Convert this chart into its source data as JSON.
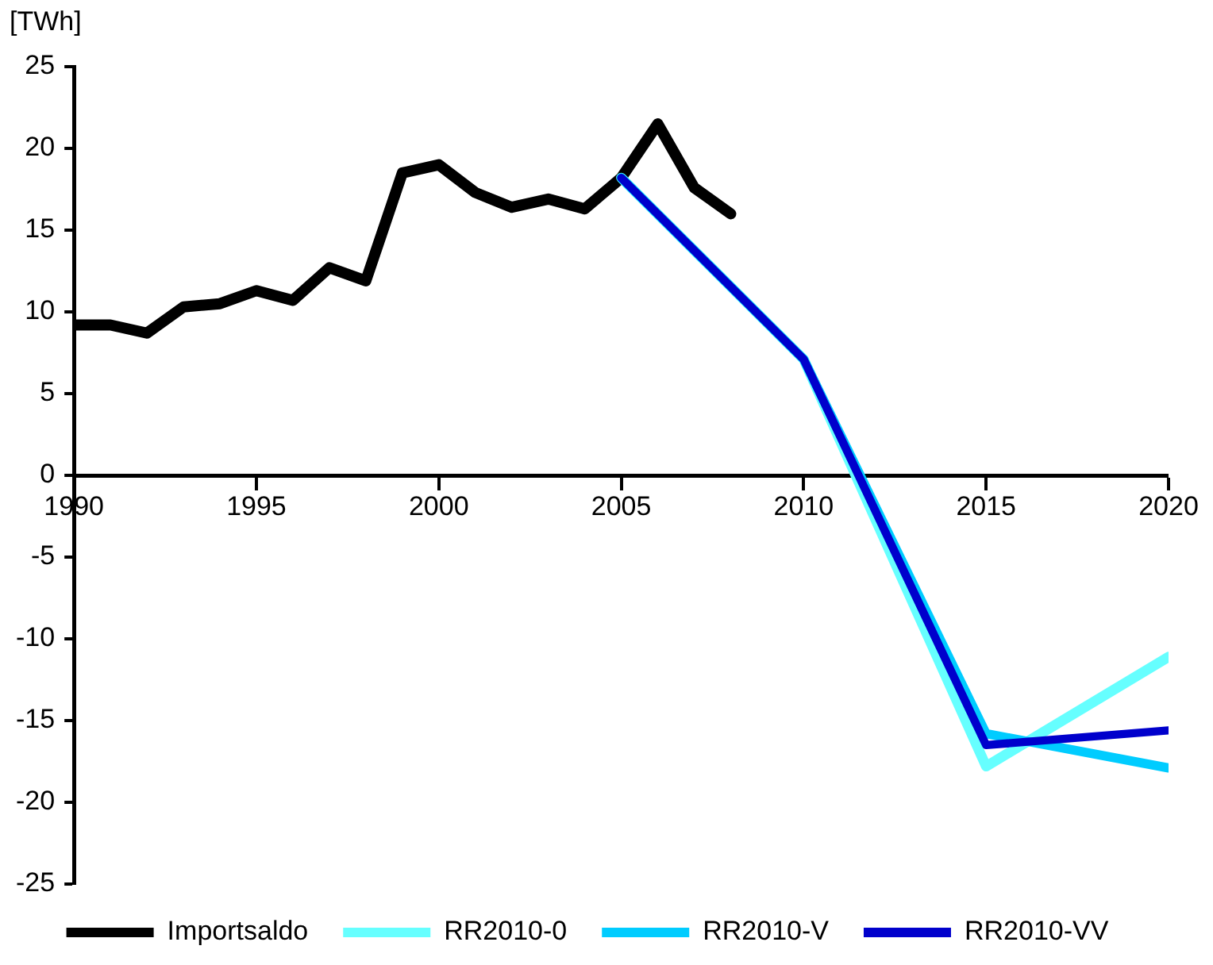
{
  "chart_data": {
    "type": "line",
    "ylabel": "[TWh]",
    "xlim": [
      1990,
      2020
    ],
    "xticks": [
      1990,
      1995,
      2000,
      2005,
      2010,
      2015,
      2020
    ],
    "ylim": [
      -25,
      25
    ],
    "yticks": [
      -25,
      -20,
      -15,
      -10,
      -5,
      0,
      5,
      10,
      15,
      20,
      25
    ],
    "grid": false,
    "legend": "bottom",
    "marker": "none",
    "line_style": "solid",
    "series": [
      {
        "name": "Importsaldo",
        "color": "#000000",
        "x": [
          1990,
          1991,
          1992,
          1993,
          1994,
          1995,
          1996,
          1997,
          1998,
          1999,
          2000,
          2001,
          2002,
          2003,
          2004,
          2005,
          2006,
          2007,
          2008
        ],
        "values": [
          9.2,
          9.2,
          8.7,
          10.3,
          10.5,
          11.3,
          10.7,
          12.7,
          11.9,
          18.5,
          19.0,
          17.3,
          16.4,
          16.9,
          16.3,
          18.2,
          21.5,
          17.6,
          16.0
        ]
      },
      {
        "name": "RR2010-0",
        "color": "#66ffff",
        "x": [
          2005,
          2010,
          2015,
          2020
        ],
        "values": [
          18.2,
          7.1,
          -17.8,
          -11.1
        ]
      },
      {
        "name": "RR2010-V",
        "color": "#00ccff",
        "x": [
          2005,
          2010,
          2015,
          2020
        ],
        "values": [
          18.2,
          7.1,
          -15.8,
          -17.9
        ]
      },
      {
        "name": "RR2010-VV",
        "color": "#0000cc",
        "x": [
          2005,
          2010,
          2015,
          2020
        ],
        "values": [
          18.2,
          7.1,
          -16.5,
          -15.6
        ]
      }
    ]
  }
}
